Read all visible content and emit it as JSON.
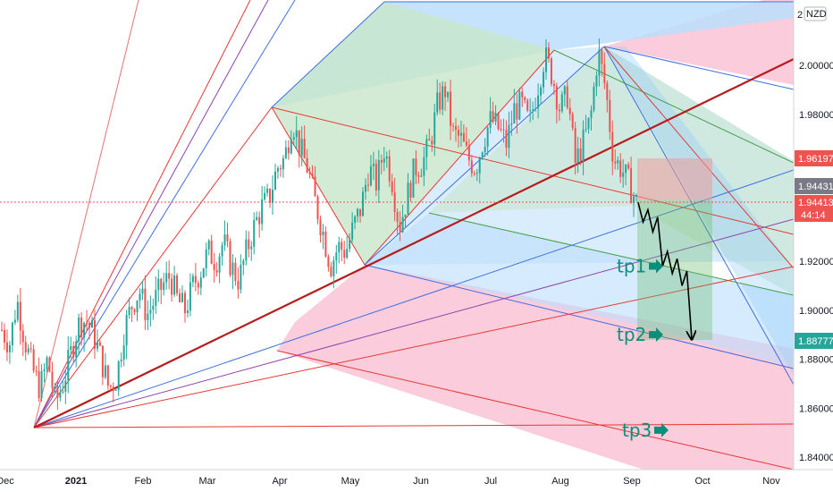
{
  "chart_data": {
    "type": "candlestick",
    "currency": "NZD",
    "currency_badge": "2",
    "x_tick_labels": [
      "Dec",
      "2021",
      "Feb",
      "Mar",
      "Apr",
      "May",
      "Jun",
      "Jul",
      "Aug",
      "Sep",
      "Oct",
      "Nov"
    ],
    "y_ticks": [
      "2.00000",
      "1.98000",
      "1.92000",
      "1.90000",
      "1.88000",
      "1.86000",
      "1.84000"
    ],
    "ylim": [
      1.835,
      2.025
    ],
    "grid": false,
    "price_labels": {
      "top_level": "1.96197",
      "last_price": "1.94431",
      "bid": "1.94413",
      "countdown": "44:14",
      "target": "1.88777"
    },
    "colors": {
      "up": "#26a69a",
      "down": "#ef5350",
      "fan_red": "#e53935",
      "fan_blue": "#3d6fe0",
      "fan_purple": "#8e44ad",
      "trend": "#b71c1c",
      "pitch_blue": "#bbdefb",
      "pitch_green": "#c8e6c9",
      "pitch_pink": "#f8bbd0",
      "tp": "#0a8f7a",
      "price_line": "#ef5350"
    },
    "projection_path": [
      1.944,
      1.936,
      1.941,
      1.932,
      1.938,
      1.918,
      1.924,
      1.915,
      1.921,
      1.91,
      1.916,
      1.888
    ],
    "take_profits": [
      {
        "label": "tp1",
        "value": 1.918
      },
      {
        "label": "tp2",
        "value": 1.89
      },
      {
        "label": "tp3",
        "value": 1.851
      }
    ],
    "series": [
      {
        "values": [
          1.892,
          1.886,
          1.904,
          1.888,
          1.876,
          1.868,
          1.88,
          1.862,
          1.87,
          1.882,
          1.894,
          1.896,
          1.89,
          1.88,
          1.868,
          1.872,
          1.892,
          1.902,
          1.908,
          1.898,
          1.904,
          1.91,
          1.914,
          1.904,
          1.9,
          1.91,
          1.916,
          1.924,
          1.92,
          1.928,
          1.918,
          1.912,
          1.924,
          1.934,
          1.942,
          1.946,
          1.958,
          1.962,
          1.978,
          1.966,
          1.958,
          1.944,
          1.932,
          1.918,
          1.926,
          1.924,
          1.934,
          1.942,
          1.958,
          1.952,
          1.966,
          1.954,
          1.934,
          1.946,
          1.958,
          1.96,
          1.968,
          1.984,
          1.99,
          1.972,
          1.97,
          1.962,
          1.958,
          1.97,
          1.978,
          1.974,
          1.968,
          1.982,
          1.984,
          1.976,
          1.99,
          2.004,
          1.996,
          1.982,
          1.988,
          1.96,
          1.968,
          1.978,
          2.006,
          1.99,
          1.962,
          1.958,
          1.952,
          1.944
        ]
      }
    ]
  }
}
